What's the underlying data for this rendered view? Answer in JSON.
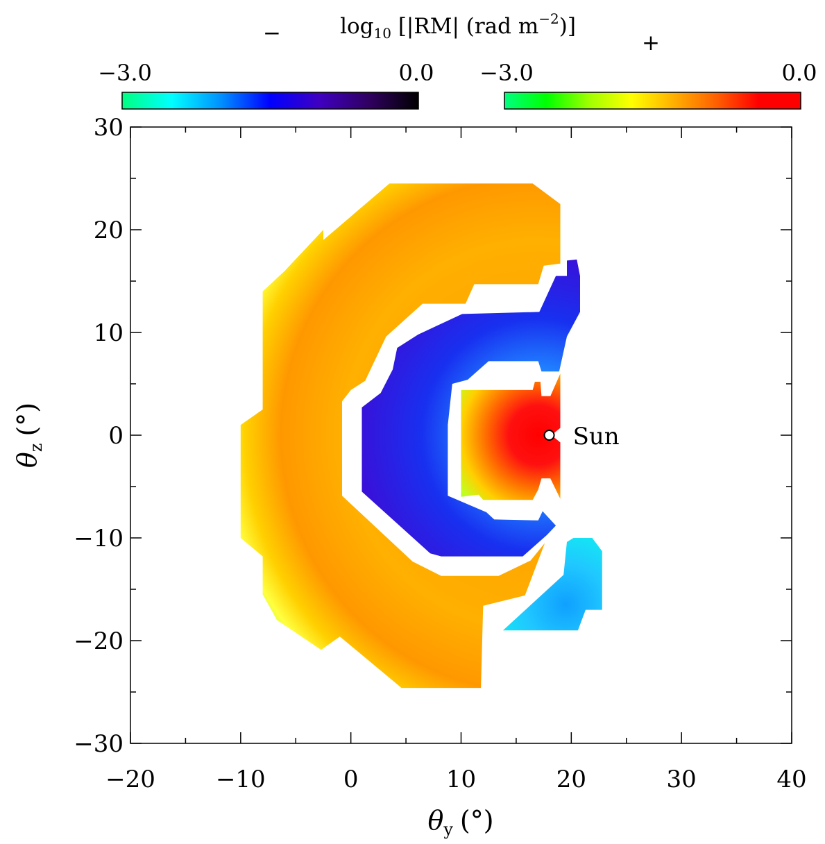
{
  "chart_data": {
    "type": "heatmap",
    "title": "",
    "xlabel": "θy (°)",
    "ylabel": "θz (°)",
    "xlabel_parts": {
      "symbol": "θ",
      "subscript": "y",
      "unit": "(°)"
    },
    "ylabel_parts": {
      "symbol": "θ",
      "subscript": "z",
      "unit": "(°)"
    },
    "xlim": [
      -20,
      40
    ],
    "ylim": [
      -30,
      30
    ],
    "xticks": [
      -20,
      -10,
      0,
      10,
      20,
      30,
      40
    ],
    "yticks": [
      -30,
      -20,
      -10,
      0,
      10,
      20,
      30
    ],
    "xtick_labels": [
      "−20",
      "−10",
      "0",
      "10",
      "20",
      "30",
      "40"
    ],
    "ytick_labels": [
      "−30",
      "−20",
      "−10",
      "0",
      "10",
      "20",
      "30"
    ],
    "grid": false,
    "colorbar": {
      "title": "log₁₀ [|RM| (rad m⁻²)]",
      "title_parts": {
        "prefix": "log",
        "sub": "10",
        "body": " [|RM| (rad m",
        "sup": "−2",
        "suffix": ")]"
      },
      "minus_sign": "−",
      "plus_sign": "+",
      "negative": {
        "tick_labels": [
          "−3.0",
          "0.0"
        ],
        "range": [
          -3.0,
          0.0
        ],
        "colors": [
          "#00ff80",
          "#00ffff",
          "#0090ff",
          "#0000ff",
          "#4000c0",
          "#300060",
          "#000000"
        ]
      },
      "positive": {
        "tick_labels": [
          "−3.0",
          "0.0"
        ],
        "range": [
          -3.0,
          0.0
        ],
        "colors": [
          "#00ff80",
          "#00ff00",
          "#a0ff00",
          "#ffff00",
          "#ffb000",
          "#ff6000",
          "#ff0000",
          "#ff0000"
        ]
      }
    },
    "annotation": {
      "text": "Sun",
      "x": 18,
      "y": 0
    },
    "regions": [
      {
        "sign": "+",
        "fill": "arc-outer",
        "polygon": [
          [
            -8,
            14
          ],
          [
            -6,
            16
          ],
          [
            -2.5,
            20
          ],
          [
            -2.5,
            19
          ],
          [
            3.5,
            24.5
          ],
          [
            16.5,
            24.5
          ],
          [
            19,
            22.5
          ],
          [
            19,
            16.7
          ],
          [
            17.5,
            16.5
          ],
          [
            17,
            14.7
          ],
          [
            11.2,
            14.7
          ],
          [
            10.4,
            12.8
          ],
          [
            6.5,
            12.8
          ],
          [
            3.2,
            9.6
          ],
          [
            1.3,
            5.3
          ],
          [
            0,
            4.4
          ],
          [
            -0.8,
            3.3
          ],
          [
            -0.8,
            -5.9
          ],
          [
            5.6,
            -12.3
          ],
          [
            8.2,
            -13.7
          ],
          [
            13.4,
            -13.7
          ],
          [
            16.3,
            -12.2
          ],
          [
            17.6,
            -10.5
          ],
          [
            15.8,
            -15.6
          ],
          [
            12,
            -16.6
          ],
          [
            11.8,
            -24.6
          ],
          [
            4.6,
            -24.6
          ],
          [
            -1,
            -19.6
          ],
          [
            -2.7,
            -20.9
          ],
          [
            -6.7,
            -18
          ],
          [
            -8,
            -15.5
          ],
          [
            -8,
            -11.8
          ],
          [
            -10,
            -10
          ],
          [
            -10,
            -4.5
          ],
          [
            -10,
            1
          ],
          [
            -8,
            2.5
          ],
          [
            -8,
            10.6
          ]
        ]
      },
      {
        "sign": "-",
        "fill": "arc-blue",
        "polygon": [
          [
            10.1,
            11.8
          ],
          [
            17.1,
            12
          ],
          [
            18.6,
            15.5
          ],
          [
            19.6,
            15.5
          ],
          [
            19.6,
            17
          ],
          [
            20.5,
            17.1
          ],
          [
            20.8,
            15.5
          ],
          [
            20.8,
            12
          ],
          [
            19.6,
            9.6
          ],
          [
            18.9,
            6.2
          ],
          [
            17.3,
            6.2
          ],
          [
            17,
            7.2
          ],
          [
            12.5,
            7.2
          ],
          [
            10.6,
            5.4
          ],
          [
            9.2,
            5
          ],
          [
            8.8,
            1
          ],
          [
            8.8,
            -5.9
          ],
          [
            12.3,
            -7.5
          ],
          [
            13,
            -8.2
          ],
          [
            17,
            -8.3
          ],
          [
            17.4,
            -7.4
          ],
          [
            18.6,
            -8.8
          ],
          [
            17.8,
            -9.7
          ],
          [
            15.6,
            -11.8
          ],
          [
            8.2,
            -11.8
          ],
          [
            7.2,
            -11.5
          ],
          [
            1,
            -5.5
          ],
          [
            1,
            2.7
          ],
          [
            2.7,
            4.1
          ],
          [
            3.8,
            6.4
          ],
          [
            4.2,
            8.5
          ],
          [
            6.1,
            9.8
          ]
        ]
      },
      {
        "sign": "+",
        "fill": "inner-red",
        "polygon": [
          [
            10,
            4.4
          ],
          [
            16.5,
            4.4
          ],
          [
            16.7,
            5.2
          ],
          [
            17.2,
            5.2
          ],
          [
            17.3,
            3.8
          ],
          [
            18.1,
            3.8
          ],
          [
            19,
            6
          ],
          [
            19,
            0.7
          ],
          [
            18.2,
            0
          ],
          [
            19,
            -0.7
          ],
          [
            19,
            -6.2
          ],
          [
            18.1,
            -4.2
          ],
          [
            17.3,
            -4.2
          ],
          [
            17,
            -5.3
          ],
          [
            16.5,
            -6.3
          ],
          [
            12,
            -6.3
          ],
          [
            11.6,
            -5.8
          ],
          [
            10,
            -6
          ]
        ]
      },
      {
        "sign": "-",
        "fill": "lower-cyan",
        "polygon": [
          [
            20.2,
            -10
          ],
          [
            21.9,
            -10
          ],
          [
            22.8,
            -11.3
          ],
          [
            22.8,
            -17
          ],
          [
            21.3,
            -17
          ],
          [
            20.6,
            -19
          ],
          [
            13.8,
            -19
          ],
          [
            19.3,
            -13.6
          ],
          [
            19.6,
            -10.4
          ]
        ]
      }
    ]
  }
}
